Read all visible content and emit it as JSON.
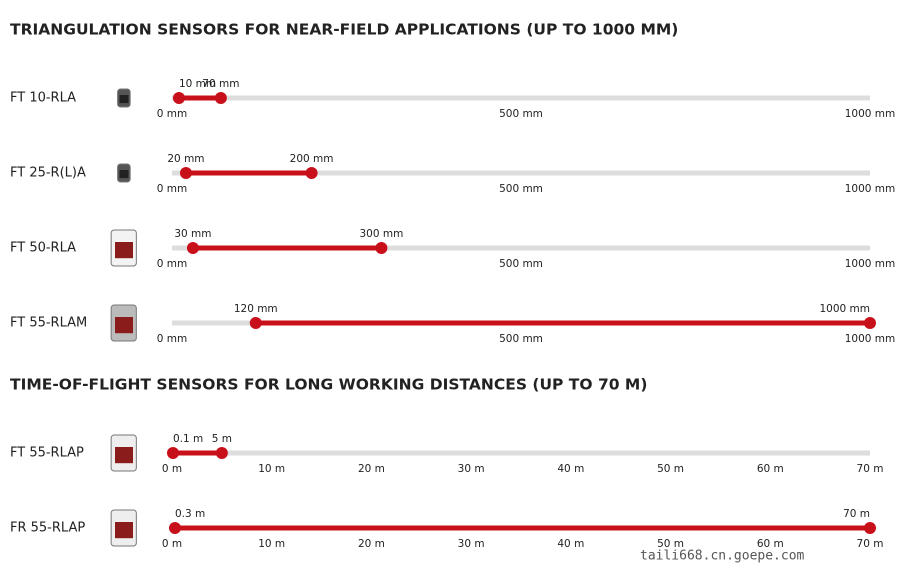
{
  "sections": [
    {
      "title": "TRIANGULATION SENSORS FOR NEAR-FIELD APPLICATIONS (UP TO 1000 MM)",
      "ticks": [
        {
          "value": 0,
          "label": "0 mm"
        },
        {
          "value": 500,
          "label": "500 mm"
        },
        {
          "value": 1000,
          "label": "1000 mm"
        }
      ],
      "rows": [
        {
          "name": "FT 10-RLA",
          "range": [
            {
              "value": 10,
              "label": "10 mm"
            },
            {
              "value": 70,
              "label": "70 mm"
            }
          ]
        },
        {
          "name": "FT 25-R(L)A",
          "range": [
            {
              "value": 20,
              "label": "20 mm"
            },
            {
              "value": 200,
              "label": "200 mm"
            }
          ]
        },
        {
          "name": "FT 50-RLA",
          "range": [
            {
              "value": 30,
              "label": "30 mm"
            },
            {
              "value": 300,
              "label": "300 mm"
            }
          ]
        },
        {
          "name": "FT 55-RLAM",
          "range": [
            {
              "value": 120,
              "label": "120 mm"
            },
            {
              "value": 1000,
              "label": "1000 mm"
            }
          ]
        }
      ]
    },
    {
      "title": "TIME-OF-FLIGHT SENSORS FOR LONG WORKING DISTANCES (UP TO 70 M)",
      "ticks": [
        {
          "value": 0,
          "label": "0 m"
        },
        {
          "value": 10,
          "label": "10 m"
        },
        {
          "value": 20,
          "label": "20 m"
        },
        {
          "value": 30,
          "label": "30 m"
        },
        {
          "value": 40,
          "label": "40 m"
        },
        {
          "value": 50,
          "label": "50 m"
        },
        {
          "value": 60,
          "label": "60 m"
        },
        {
          "value": 70,
          "label": "70 m"
        }
      ],
      "rows": [
        {
          "name": "FT 55-RLAP",
          "range": [
            {
              "value": 0.1,
              "label": "0.1 m"
            },
            {
              "value": 5,
              "label": "5 m"
            }
          ]
        },
        {
          "name": "FR 55-RLAP",
          "range": [
            {
              "value": 0.3,
              "label": "0.3 m"
            },
            {
              "value": 70,
              "label": "70 m"
            }
          ]
        }
      ]
    }
  ],
  "watermark": "taili668.cn.goepe.com"
}
